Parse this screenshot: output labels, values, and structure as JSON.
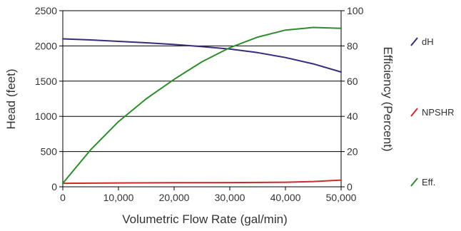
{
  "chart_data": {
    "type": "line",
    "xlabel": "Volumetric Flow Rate (gal/min)",
    "ylabel_left": "Head (feet)",
    "ylabel_right": "Efficiency (Percent)",
    "xlim": [
      0,
      50000
    ],
    "ylim_left": [
      0,
      2500
    ],
    "ylim_right": [
      0,
      100
    ],
    "x_ticks": [
      0,
      10000,
      20000,
      30000,
      40000,
      50000
    ],
    "x_tick_labels": [
      "0",
      "10,000",
      "20,000",
      "30,000",
      "40,000",
      "50,000"
    ],
    "y_left_ticks": [
      0,
      500,
      1000,
      1500,
      2000,
      2500
    ],
    "y_left_tick_labels": [
      "0",
      "500",
      "1000",
      "1500",
      "2000",
      "2500"
    ],
    "y_right_ticks": [
      0,
      20,
      40,
      60,
      80,
      100
    ],
    "y_right_tick_labels": [
      "0",
      "20",
      "40",
      "60",
      "80",
      "100"
    ],
    "grid": "horizontal",
    "legend_position": "right",
    "series": [
      {
        "name": "dH",
        "axis": "left",
        "color": "#3a2a7a",
        "x": [
          0,
          5000,
          10000,
          15000,
          20000,
          25000,
          30000,
          35000,
          40000,
          45000,
          50000
        ],
        "y": [
          2100,
          2085,
          2065,
          2045,
          2020,
          1990,
          1955,
          1905,
          1835,
          1745,
          1630
        ]
      },
      {
        "name": "NPSHR",
        "axis": "left",
        "color": "#cc2a2a",
        "x": [
          0,
          10000,
          20000,
          30000,
          40000,
          45000,
          50000
        ],
        "y": [
          50,
          55,
          58,
          60,
          65,
          75,
          95
        ]
      },
      {
        "name": "Eff.",
        "axis": "right",
        "color": "#2e8b2e",
        "x": [
          0,
          5000,
          10000,
          15000,
          20000,
          25000,
          30000,
          35000,
          40000,
          45000,
          50000
        ],
        "y": [
          2,
          21,
          37,
          50,
          61,
          71,
          79,
          85,
          89,
          90.5,
          90
        ]
      }
    ]
  }
}
